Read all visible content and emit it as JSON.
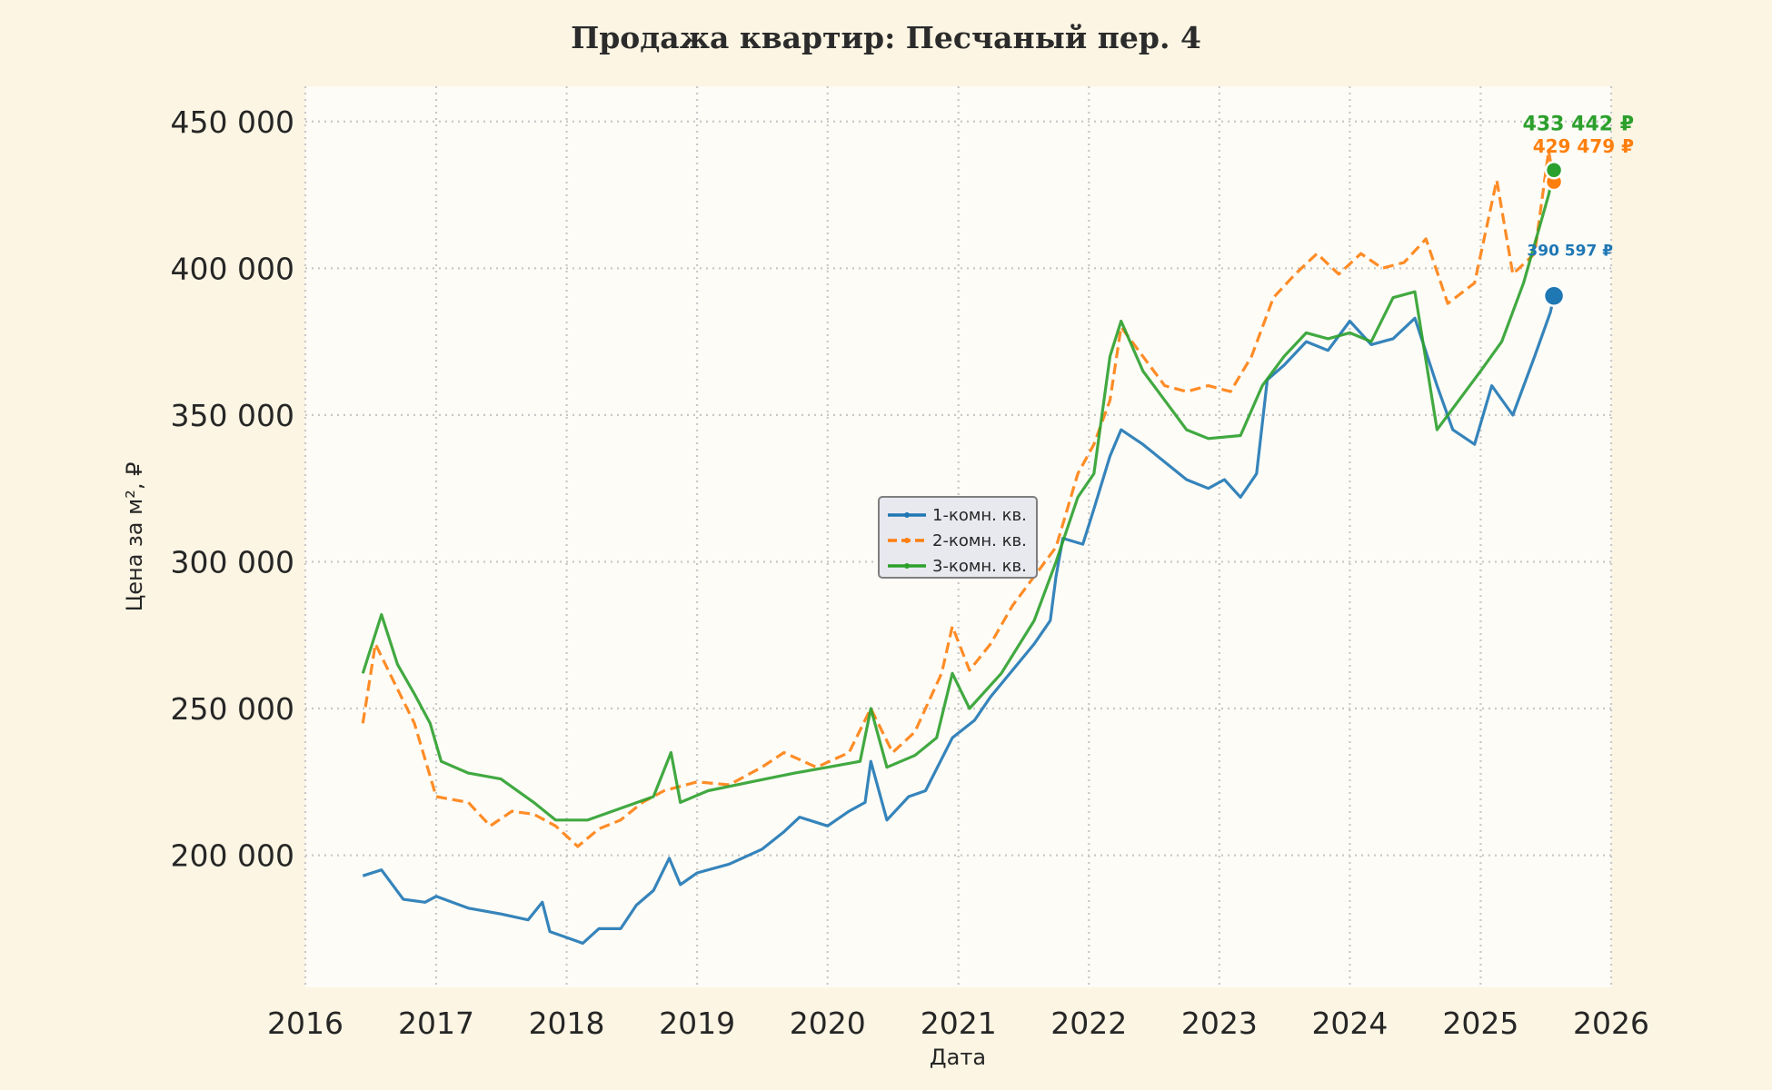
{
  "chart_data": {
    "type": "line",
    "title": "Продажа квартир: Песчаный пер. 4",
    "xlabel": "Дата",
    "ylabel": "Цена за м², ₽",
    "xlim": [
      "2016-01-01",
      "2026-01-01"
    ],
    "ylim": [
      155000,
      462000
    ],
    "x_ticks": [
      "2016",
      "2017",
      "2018",
      "2019",
      "2020",
      "2021",
      "2022",
      "2023",
      "2024",
      "2025",
      "2026"
    ],
    "y_ticks": [
      "200 000",
      "250 000",
      "300 000",
      "350 000",
      "400 000",
      "450 000"
    ],
    "grid": true,
    "legend_placement": "center",
    "series": [
      {
        "name": "1-комн. кв.",
        "color": "#1f77b4",
        "points": [
          [
            "2016-06-10",
            193000
          ],
          [
            "2016-08-01",
            195000
          ],
          [
            "2016-10-01",
            185000
          ],
          [
            "2016-12-01",
            184000
          ],
          [
            "2017-01-01",
            186000
          ],
          [
            "2017-04-01",
            182000
          ],
          [
            "2017-07-01",
            180000
          ],
          [
            "2017-09-15",
            178000
          ],
          [
            "2017-10-25",
            184000
          ],
          [
            "2017-11-15",
            174000
          ],
          [
            "2018-01-01",
            172000
          ],
          [
            "2018-02-15",
            170000
          ],
          [
            "2018-04-01",
            175000
          ],
          [
            "2018-06-01",
            175000
          ],
          [
            "2018-07-15",
            183000
          ],
          [
            "2018-09-01",
            188000
          ],
          [
            "2018-10-15",
            199000
          ],
          [
            "2018-11-15",
            190000
          ],
          [
            "2019-01-01",
            194000
          ],
          [
            "2019-04-01",
            197000
          ],
          [
            "2019-07-01",
            202000
          ],
          [
            "2019-09-01",
            208000
          ],
          [
            "2019-10-15",
            213000
          ],
          [
            "2020-01-01",
            210000
          ],
          [
            "2020-03-01",
            215000
          ],
          [
            "2020-04-15",
            218000
          ],
          [
            "2020-05-01",
            232000
          ],
          [
            "2020-06-15",
            212000
          ],
          [
            "2020-08-15",
            220000
          ],
          [
            "2020-10-01",
            222000
          ],
          [
            "2020-12-15",
            240000
          ],
          [
            "2021-02-15",
            246000
          ],
          [
            "2021-04-01",
            254000
          ],
          [
            "2021-06-01",
            263000
          ],
          [
            "2021-08-01",
            272000
          ],
          [
            "2021-09-15",
            280000
          ],
          [
            "2021-10-01",
            295000
          ],
          [
            "2021-10-20",
            308000
          ],
          [
            "2021-12-15",
            306000
          ],
          [
            "2022-01-15",
            318000
          ],
          [
            "2022-03-01",
            336000
          ],
          [
            "2022-04-01",
            345000
          ],
          [
            "2022-06-01",
            340000
          ],
          [
            "2022-08-01",
            334000
          ],
          [
            "2022-10-01",
            328000
          ],
          [
            "2022-12-01",
            325000
          ],
          [
            "2023-01-15",
            328000
          ],
          [
            "2023-03-01",
            322000
          ],
          [
            "2023-04-15",
            330000
          ],
          [
            "2023-05-15",
            362000
          ],
          [
            "2023-07-01",
            367000
          ],
          [
            "2023-09-01",
            375000
          ],
          [
            "2023-11-01",
            372000
          ],
          [
            "2024-01-01",
            382000
          ],
          [
            "2024-03-01",
            374000
          ],
          [
            "2024-05-01",
            376000
          ],
          [
            "2024-07-01",
            383000
          ],
          [
            "2024-09-01",
            360000
          ],
          [
            "2024-10-15",
            345000
          ],
          [
            "2024-12-15",
            340000
          ],
          [
            "2025-02-01",
            360000
          ],
          [
            "2025-04-01",
            350000
          ],
          [
            "2025-06-01",
            370000
          ],
          [
            "2025-07-15",
            385000
          ],
          [
            "2025-07-25",
            390597
          ]
        ]
      },
      {
        "name": "2-комн. кв.",
        "color": "#ff7f0e",
        "points": [
          [
            "2016-06-10",
            245000
          ],
          [
            "2016-07-15",
            272000
          ],
          [
            "2016-09-01",
            260000
          ],
          [
            "2016-11-01",
            245000
          ],
          [
            "2017-01-01",
            220000
          ],
          [
            "2017-04-01",
            218000
          ],
          [
            "2017-06-01",
            210000
          ],
          [
            "2017-08-01",
            215000
          ],
          [
            "2017-10-01",
            214000
          ],
          [
            "2017-12-01",
            210000
          ],
          [
            "2018-02-01",
            203000
          ],
          [
            "2018-04-01",
            209000
          ],
          [
            "2018-06-01",
            212000
          ],
          [
            "2018-08-01",
            218000
          ],
          [
            "2018-10-01",
            222000
          ],
          [
            "2019-01-01",
            225000
          ],
          [
            "2019-04-01",
            224000
          ],
          [
            "2019-07-01",
            230000
          ],
          [
            "2019-09-01",
            235000
          ],
          [
            "2019-12-01",
            230000
          ],
          [
            "2020-03-01",
            235000
          ],
          [
            "2020-05-01",
            250000
          ],
          [
            "2020-07-01",
            235000
          ],
          [
            "2020-09-01",
            242000
          ],
          [
            "2020-11-15",
            262000
          ],
          [
            "2020-12-15",
            278000
          ],
          [
            "2021-02-01",
            263000
          ],
          [
            "2021-04-01",
            272000
          ],
          [
            "2021-06-01",
            285000
          ],
          [
            "2021-08-01",
            295000
          ],
          [
            "2021-10-01",
            305000
          ],
          [
            "2021-12-01",
            330000
          ],
          [
            "2022-01-15",
            340000
          ],
          [
            "2022-03-01",
            355000
          ],
          [
            "2022-04-01",
            380000
          ],
          [
            "2022-06-01",
            370000
          ],
          [
            "2022-08-01",
            360000
          ],
          [
            "2022-10-01",
            358000
          ],
          [
            "2022-12-01",
            360000
          ],
          [
            "2023-02-01",
            358000
          ],
          [
            "2023-04-01",
            370000
          ],
          [
            "2023-06-01",
            390000
          ],
          [
            "2023-08-01",
            398000
          ],
          [
            "2023-10-01",
            405000
          ],
          [
            "2023-12-01",
            398000
          ],
          [
            "2024-02-01",
            405000
          ],
          [
            "2024-04-01",
            400000
          ],
          [
            "2024-06-01",
            402000
          ],
          [
            "2024-08-01",
            410000
          ],
          [
            "2024-10-01",
            388000
          ],
          [
            "2024-12-15",
            395000
          ],
          [
            "2025-02-15",
            430000
          ],
          [
            "2025-04-01",
            398000
          ],
          [
            "2025-06-01",
            405000
          ],
          [
            "2025-07-10",
            440000
          ],
          [
            "2025-07-25",
            429479
          ]
        ]
      },
      {
        "name": "3-комн. кв.",
        "color": "#2ca02c",
        "points": [
          [
            "2016-06-10",
            262000
          ],
          [
            "2016-08-01",
            282000
          ],
          [
            "2016-09-15",
            265000
          ],
          [
            "2016-11-01",
            255000
          ],
          [
            "2016-12-15",
            245000
          ],
          [
            "2017-01-15",
            232000
          ],
          [
            "2017-04-01",
            228000
          ],
          [
            "2017-07-01",
            226000
          ],
          [
            "2017-10-01",
            218000
          ],
          [
            "2017-12-01",
            212000
          ],
          [
            "2018-03-01",
            212000
          ],
          [
            "2018-06-01",
            216000
          ],
          [
            "2018-09-01",
            220000
          ],
          [
            "2018-10-20",
            235000
          ],
          [
            "2018-11-15",
            218000
          ],
          [
            "2019-02-01",
            222000
          ],
          [
            "2019-06-01",
            225000
          ],
          [
            "2019-10-01",
            228000
          ],
          [
            "2020-01-01",
            230000
          ],
          [
            "2020-04-01",
            232000
          ],
          [
            "2020-05-01",
            250000
          ],
          [
            "2020-06-15",
            230000
          ],
          [
            "2020-09-01",
            234000
          ],
          [
            "2020-11-01",
            240000
          ],
          [
            "2020-12-15",
            262000
          ],
          [
            "2021-02-01",
            250000
          ],
          [
            "2021-05-01",
            262000
          ],
          [
            "2021-08-01",
            280000
          ],
          [
            "2021-10-01",
            300000
          ],
          [
            "2021-12-01",
            322000
          ],
          [
            "2022-01-15",
            330000
          ],
          [
            "2022-03-01",
            370000
          ],
          [
            "2022-04-01",
            382000
          ],
          [
            "2022-06-01",
            365000
          ],
          [
            "2022-08-01",
            355000
          ],
          [
            "2022-10-01",
            345000
          ],
          [
            "2022-12-01",
            342000
          ],
          [
            "2023-03-01",
            343000
          ],
          [
            "2023-05-01",
            360000
          ],
          [
            "2023-07-01",
            370000
          ],
          [
            "2023-09-01",
            378000
          ],
          [
            "2023-11-01",
            376000
          ],
          [
            "2024-01-01",
            378000
          ],
          [
            "2024-03-01",
            375000
          ],
          [
            "2024-05-01",
            390000
          ],
          [
            "2024-07-01",
            392000
          ],
          [
            "2024-09-01",
            345000
          ],
          [
            "2024-11-01",
            355000
          ],
          [
            "2025-01-01",
            365000
          ],
          [
            "2025-03-01",
            375000
          ],
          [
            "2025-05-01",
            395000
          ],
          [
            "2025-07-10",
            425000
          ],
          [
            "2025-07-25",
            433442
          ]
        ]
      }
    ],
    "annotations": [
      {
        "series": "1-комн. кв.",
        "text": "390 597 ₽",
        "date": "2025-07-25",
        "value": 390597
      },
      {
        "series": "2-комн. кв.",
        "text": "429 479 ₽",
        "date": "2025-07-25",
        "value": 429479
      },
      {
        "series": "3-комн. кв.",
        "text": "433 442 ₽",
        "date": "2025-07-25",
        "value": 433442
      }
    ]
  }
}
